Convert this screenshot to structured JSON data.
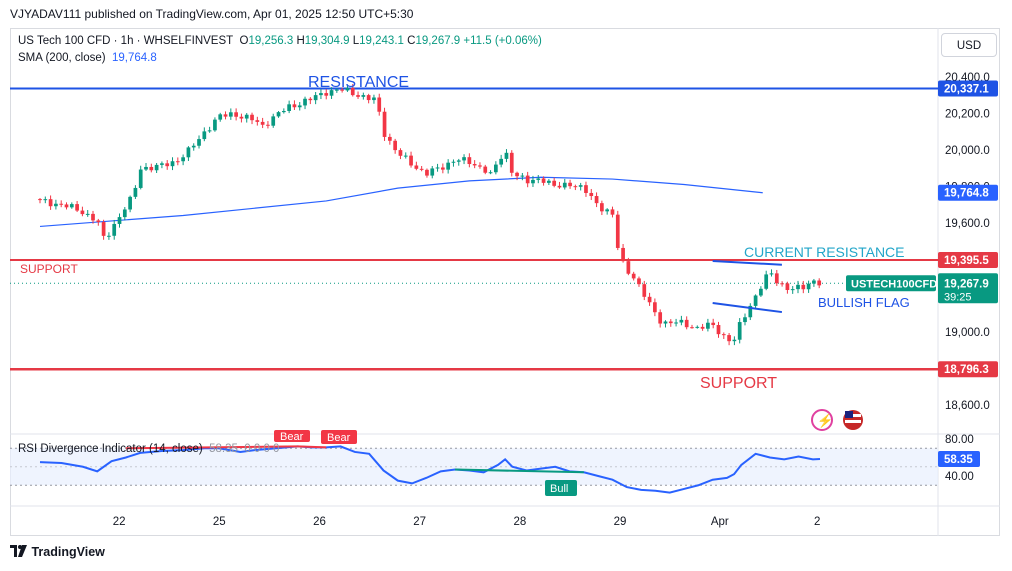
{
  "publisher": "VJYADAV111 published on TradingView.com, Apr 01, 2025 12:50 UTC+5:30",
  "legend": {
    "symbol": "US Tech 100 CFD · 1h · WHSELFINVEST",
    "o_label": "O",
    "o": "19,256.3",
    "h_label": "H",
    "h": "19,304.9",
    "l_label": "L",
    "l": "19,243.1",
    "c_label": "C",
    "c": "19,267.9",
    "change": "+11.5 (+0.06%)"
  },
  "sma_legend": {
    "label": "SMA (200, close)",
    "value": "19,764.8"
  },
  "currency_button": "USD",
  "rsi_legend": {
    "label": "RSI Divergence Indicator (14, close)",
    "value": "58.35",
    "rest": "0 0 0 0"
  },
  "footer_logo": "TradingView",
  "colors": {
    "up": "#089981",
    "down": "#f23645",
    "sma": "#2962ff",
    "rsi": "#2962ff",
    "resistance": "#1e53e5",
    "support": "#e53945"
  },
  "chart_data": [
    {
      "type": "candlestick",
      "title": "US Tech 100 CFD · 1h · WHSELFINVEST",
      "x_ticks": [
        "22",
        "25",
        "26",
        "27",
        "28",
        "29",
        "Apr",
        "2"
      ],
      "y_ticks": [
        "20,400.0",
        "20,200.0",
        "20,000.0",
        "19,800.0",
        "19,600.0",
        "19,000.0",
        "18,600.0"
      ],
      "ylim": [
        18500,
        20450
      ],
      "price_labels": {
        "resistance": "20,337.1",
        "sma": "19,764.8",
        "current_resistance": "19,395.5",
        "last": "19,267.9",
        "countdown": "39:25",
        "symbol_tag": "USTECH100CFD",
        "support": "18,796.3"
      },
      "annotations": {
        "resistance": "RESISTANCE",
        "support_left": "SUPPORT",
        "current_resistance": "CURRENT RESISTANCE",
        "bullish_flag": "BULLISH FLAG",
        "support_bottom": "SUPPORT"
      },
      "levels": {
        "resistance": 20337.1,
        "current_resistance": 19395.5,
        "support": 18796.3
      },
      "close_path": [
        [
          0,
          19720
        ],
        [
          3,
          19700
        ],
        [
          6,
          19660
        ],
        [
          8,
          19610
        ],
        [
          9,
          19500
        ],
        [
          10,
          19570
        ],
        [
          12,
          19690
        ],
        [
          13,
          19740
        ],
        [
          14,
          19900
        ],
        [
          17,
          19910
        ],
        [
          19,
          19940
        ],
        [
          21,
          20000
        ],
        [
          23,
          20100
        ],
        [
          25,
          20180
        ],
        [
          27,
          20200
        ],
        [
          30,
          20160
        ],
        [
          31,
          20130
        ],
        [
          33,
          20190
        ],
        [
          35,
          20240
        ],
        [
          38,
          20280
        ],
        [
          40,
          20320
        ],
        [
          42,
          20330
        ],
        [
          44,
          20310
        ],
        [
          46,
          20280
        ],
        [
          47,
          20270
        ],
        [
          48,
          20100
        ],
        [
          50,
          19980
        ],
        [
          52,
          19920
        ],
        [
          54,
          19870
        ],
        [
          56,
          19900
        ],
        [
          58,
          19950
        ],
        [
          60,
          19930
        ],
        [
          62,
          19900
        ],
        [
          63,
          19860
        ],
        [
          65,
          20000
        ],
        [
          66,
          19880
        ],
        [
          68,
          19820
        ],
        [
          70,
          19850
        ],
        [
          72,
          19790
        ],
        [
          74,
          19820
        ],
        [
          76,
          19780
        ],
        [
          78,
          19700
        ],
        [
          80,
          19640
        ],
        [
          81,
          19400
        ],
        [
          83,
          19300
        ],
        [
          85,
          19160
        ],
        [
          87,
          19050
        ],
        [
          90,
          19050
        ],
        [
          92,
          19020
        ],
        [
          94,
          19040
        ],
        [
          96,
          18960
        ],
        [
          97,
          18950
        ],
        [
          98,
          19060
        ],
        [
          100,
          19200
        ],
        [
          102,
          19330
        ],
        [
          103,
          19280
        ],
        [
          105,
          19230
        ],
        [
          107,
          19250
        ],
        [
          108,
          19290
        ],
        [
          109,
          19267.9
        ]
      ],
      "candle_x_range": [
        0,
        109
      ],
      "x_tick_positions": [
        11,
        25,
        39,
        53,
        67,
        81,
        95,
        109
      ],
      "sma": [
        [
          0,
          19580
        ],
        [
          20,
          19640
        ],
        [
          40,
          19720
        ],
        [
          50,
          19790
        ],
        [
          60,
          19830
        ],
        [
          70,
          19850
        ],
        [
          80,
          19840
        ],
        [
          90,
          19810
        ],
        [
          101,
          19764.8
        ]
      ],
      "flag": {
        "upper": [
          [
            94,
            19390
          ],
          [
            102,
            19370
          ]
        ],
        "lower": [
          [
            94,
            19160
          ],
          [
            102,
            19110
          ]
        ]
      }
    },
    {
      "type": "line",
      "title": "RSI Divergence Indicator (14, close)",
      "y_ticks": [
        "80.00",
        "40.00"
      ],
      "ylim": [
        20,
        85
      ],
      "last_value": "58.35",
      "labels": {
        "bear1": "Bear",
        "bear2": "Bear",
        "bull": "Bull"
      },
      "rsi": [
        [
          0,
          55
        ],
        [
          3,
          54
        ],
        [
          6,
          50
        ],
        [
          8,
          45
        ],
        [
          10,
          56
        ],
        [
          12,
          60
        ],
        [
          14,
          65
        ],
        [
          17,
          67
        ],
        [
          20,
          68
        ],
        [
          23,
          70
        ],
        [
          25,
          70
        ],
        [
          28,
          66
        ],
        [
          30,
          68
        ],
        [
          33,
          70
        ],
        [
          36,
          72
        ],
        [
          38,
          71
        ],
        [
          40,
          71
        ],
        [
          42,
          72
        ],
        [
          44,
          66
        ],
        [
          46,
          64
        ],
        [
          48,
          46
        ],
        [
          50,
          35
        ],
        [
          52,
          32
        ],
        [
          54,
          38
        ],
        [
          56,
          45
        ],
        [
          58,
          47
        ],
        [
          60,
          46
        ],
        [
          62,
          44
        ],
        [
          64,
          52
        ],
        [
          65,
          58
        ],
        [
          66,
          50
        ],
        [
          68,
          46
        ],
        [
          70,
          48
        ],
        [
          72,
          50
        ],
        [
          74,
          45
        ],
        [
          76,
          44
        ],
        [
          78,
          40
        ],
        [
          80,
          36
        ],
        [
          82,
          28
        ],
        [
          84,
          25
        ],
        [
          86,
          24
        ],
        [
          88,
          22
        ],
        [
          90,
          26
        ],
        [
          92,
          30
        ],
        [
          94,
          36
        ],
        [
          96,
          38
        ],
        [
          97,
          42
        ],
        [
          98,
          52
        ],
        [
          100,
          64
        ],
        [
          102,
          60
        ],
        [
          104,
          58
        ],
        [
          106,
          61
        ],
        [
          108,
          58
        ],
        [
          109,
          58.35
        ]
      ]
    }
  ]
}
